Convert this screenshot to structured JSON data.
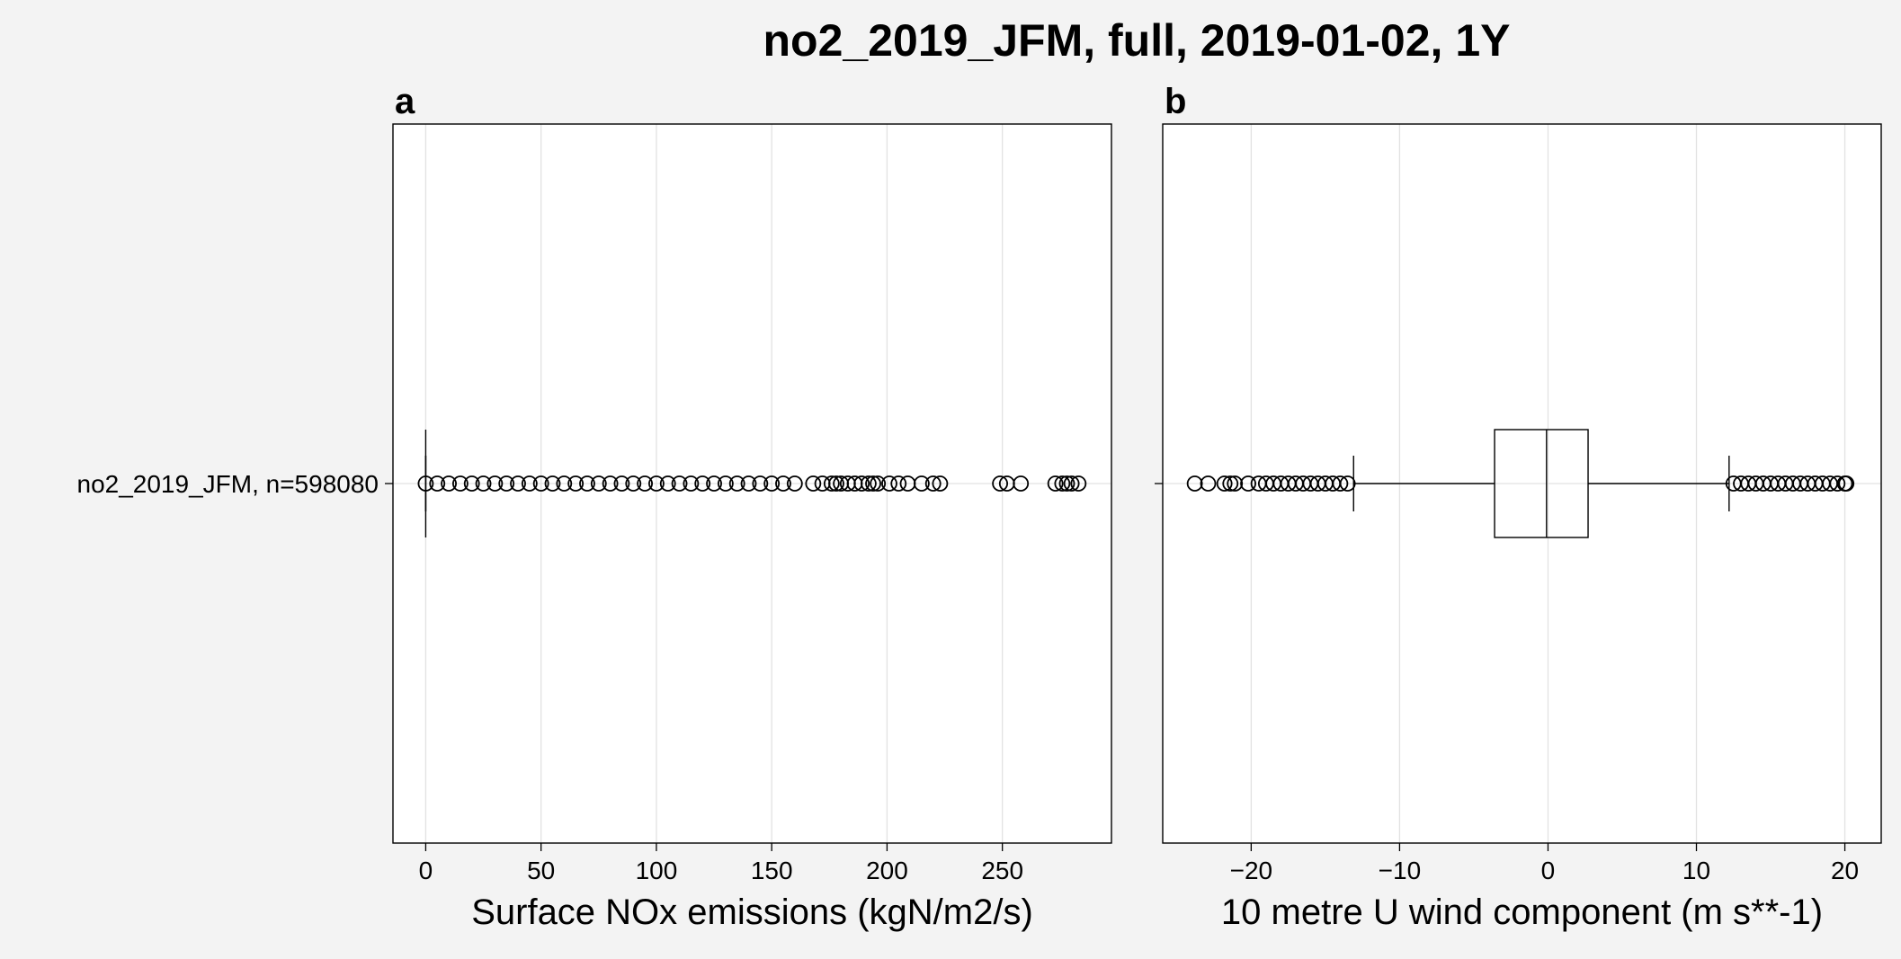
{
  "title": "no2_2019_JFM, full, 2019-01-02, 1Y",
  "chart_data": [
    {
      "type": "box",
      "panel_label": "a",
      "xlabel": "Surface NOx emissions (kgN/m2/s)",
      "categories": [
        "no2_2019_JFM, n=598080"
      ],
      "boxes": [
        {
          "whislo": 0,
          "q1": 0,
          "med": 0,
          "q3": 0,
          "whishi": 0,
          "fliers": [
            0,
            5,
            10,
            15,
            20,
            25,
            30,
            35,
            40,
            45,
            50,
            55,
            60,
            65,
            70,
            75,
            80,
            85,
            90,
            95,
            100,
            105,
            110,
            115,
            120,
            125,
            130,
            135,
            140,
            145,
            150,
            155,
            160,
            168,
            172,
            176,
            178,
            180,
            183,
            186,
            189,
            192,
            194,
            196,
            201,
            205,
            209,
            215,
            220,
            223,
            249,
            252,
            258,
            273,
            276,
            278,
            280,
            283
          ]
        }
      ],
      "xlim": [
        -14.2,
        297.3
      ],
      "xticks": [
        0,
        50,
        100,
        150,
        200,
        250
      ],
      "grid": true,
      "color": "#000000"
    },
    {
      "type": "box",
      "panel_label": "b",
      "xlabel": "10 metre U wind component (m s**-1)",
      "categories": [
        null
      ],
      "boxes": [
        {
          "whislo": -13.1,
          "q1": -3.6,
          "med": -0.1,
          "q3": 2.7,
          "whishi": 12.2,
          "fliers": [
            -23.8,
            -22.9,
            -21.8,
            -21.4,
            -21.1,
            -20.2,
            -19.5,
            -19,
            -18.5,
            -18,
            -17.5,
            -17,
            -16.5,
            -16,
            -15.5,
            -15,
            -14.5,
            -14,
            -13.5,
            12.5,
            13,
            13.5,
            14,
            14.5,
            15,
            15.5,
            16,
            16.5,
            17,
            17.5,
            18,
            18.5,
            19,
            19.5,
            20,
            20.1
          ]
        }
      ],
      "xlim": [
        -25.96,
        22.45
      ],
      "xticks": [
        {
          "value": -20,
          "label": "−20"
        },
        {
          "value": -10,
          "label": "−10"
        },
        0,
        10,
        20
      ],
      "grid": true,
      "color": "#000000"
    }
  ]
}
